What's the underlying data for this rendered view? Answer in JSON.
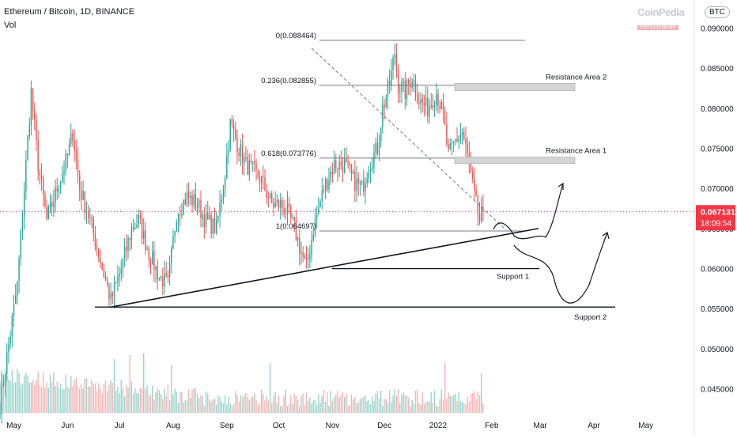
{
  "header": {
    "title": "Ethereum / Bitcoin, 1D, BINANCE",
    "volume_label": "Vol"
  },
  "watermark": {
    "brand": "CoinPedia",
    "tagline": "FINTECH NEWS"
  },
  "currency_badge": "BTC",
  "price_tag": {
    "price": "0.067131",
    "countdown": "18:09:54",
    "color": "#f23645"
  },
  "colors": {
    "up": "#26a69a",
    "down": "#ef5350",
    "volume_up": "#9bd4cc",
    "volume_down": "#f7b6b5",
    "zone": "#d4d4d4"
  },
  "chart_data": {
    "type": "candlestick",
    "symbol": "ETH/BTC",
    "timeframe": "1D",
    "exchange": "BINANCE",
    "ylim": [
      0.042,
      0.0935
    ],
    "y_ticks": [
      "0.090000",
      "0.085000",
      "0.080000",
      "0.075000",
      "0.070000",
      "0.065000",
      "0.060000",
      "0.055000",
      "0.050000",
      "0.045000"
    ],
    "y_tick_values": [
      0.09,
      0.085,
      0.08,
      0.075,
      0.07,
      0.065,
      0.06,
      0.055,
      0.05,
      0.045
    ],
    "x_ticks": [
      "May",
      "Jun",
      "Jul",
      "Aug",
      "Sep",
      "Oct",
      "Nov",
      "Dec",
      "2022",
      "Feb",
      "Mar",
      "Apr",
      "May"
    ],
    "x_tick_dates": [
      "2021-05-01",
      "2021-06-01",
      "2021-07-01",
      "2021-08-01",
      "2021-09-01",
      "2021-10-01",
      "2021-11-01",
      "2021-12-01",
      "2022-01-01",
      "2022-02-01",
      "2022-03-01",
      "2022-04-01",
      "2022-05-01"
    ],
    "x_range": [
      "2021-04-23",
      "2022-05-29"
    ],
    "price_anchors": [
      [
        "2021-04-23",
        0.043
      ],
      [
        "2021-05-03",
        0.058
      ],
      [
        "2021-05-11",
        0.082
      ],
      [
        "2021-05-15",
        0.073
      ],
      [
        "2021-05-20",
        0.066
      ],
      [
        "2021-05-26",
        0.07
      ],
      [
        "2021-06-01",
        0.074
      ],
      [
        "2021-06-04",
        0.077
      ],
      [
        "2021-06-08",
        0.07
      ],
      [
        "2021-06-14",
        0.066
      ],
      [
        "2021-06-20",
        0.061
      ],
      [
        "2021-06-26",
        0.056
      ],
      [
        "2021-07-02",
        0.06
      ],
      [
        "2021-07-08",
        0.065
      ],
      [
        "2021-07-12",
        0.066
      ],
      [
        "2021-07-18",
        0.062
      ],
      [
        "2021-07-24",
        0.059
      ],
      [
        "2021-07-29",
        0.058
      ],
      [
        "2021-08-03",
        0.067
      ],
      [
        "2021-08-09",
        0.069
      ],
      [
        "2021-08-15",
        0.068
      ],
      [
        "2021-08-20",
        0.066
      ],
      [
        "2021-08-26",
        0.065
      ],
      [
        "2021-08-31",
        0.072
      ],
      [
        "2021-09-03",
        0.078
      ],
      [
        "2021-09-08",
        0.075
      ],
      [
        "2021-09-12",
        0.073
      ],
      [
        "2021-09-17",
        0.072
      ],
      [
        "2021-09-21",
        0.071
      ],
      [
        "2021-09-27",
        0.068
      ],
      [
        "2021-10-02",
        0.068
      ],
      [
        "2021-10-06",
        0.067
      ],
      [
        "2021-10-10",
        0.065
      ],
      [
        "2021-10-14",
        0.062
      ],
      [
        "2021-10-17",
        0.06
      ],
      [
        "2021-10-21",
        0.065
      ],
      [
        "2021-10-27",
        0.07
      ],
      [
        "2021-11-02",
        0.073
      ],
      [
        "2021-11-08",
        0.073
      ],
      [
        "2021-11-13",
        0.071
      ],
      [
        "2021-11-18",
        0.07
      ],
      [
        "2021-11-22",
        0.073
      ],
      [
        "2021-11-27",
        0.075
      ],
      [
        "2021-11-30",
        0.08
      ],
      [
        "2021-12-04",
        0.083
      ],
      [
        "2021-12-07",
        0.087
      ],
      [
        "2021-12-09",
        0.083
      ],
      [
        "2021-12-13",
        0.082
      ],
      [
        "2021-12-17",
        0.084
      ],
      [
        "2021-12-21",
        0.081
      ],
      [
        "2021-12-26",
        0.08
      ],
      [
        "2021-12-31",
        0.082
      ],
      [
        "2022-01-04",
        0.079
      ],
      [
        "2022-01-07",
        0.074
      ],
      [
        "2022-01-11",
        0.076
      ],
      [
        "2022-01-15",
        0.077
      ],
      [
        "2022-01-18",
        0.074
      ],
      [
        "2022-01-22",
        0.069
      ],
      [
        "2022-01-25",
        0.066
      ],
      [
        "2022-01-27",
        0.0671
      ]
    ],
    "drawings": {
      "fibonacci": [
        {
          "ratio": "0",
          "price": "0.088464",
          "label": "0(0.088464)"
        },
        {
          "ratio": "0.236",
          "price": "0.082855",
          "label": "0.236(0.082855)"
        },
        {
          "ratio": "0.618",
          "price": "0.073776",
          "label": "0.618(0.073776)"
        },
        {
          "ratio": "1",
          "price": "0.064697",
          "label": "1(0.064697)"
        }
      ],
      "zones": [
        {
          "label": "Resistance Area 2",
          "from": 0.0822,
          "to": 0.0831
        },
        {
          "label": "Resistance Area 1",
          "from": 0.0731,
          "to": 0.0739
        }
      ],
      "supports": [
        {
          "label": "Support 1",
          "price": 0.06
        },
        {
          "label": "Support 2",
          "price": 0.0552
        }
      ],
      "trendline": {
        "from": [
          "2021-06-26",
          0.0552
        ],
        "to": [
          "2022-02-28",
          0.065
        ]
      }
    }
  }
}
